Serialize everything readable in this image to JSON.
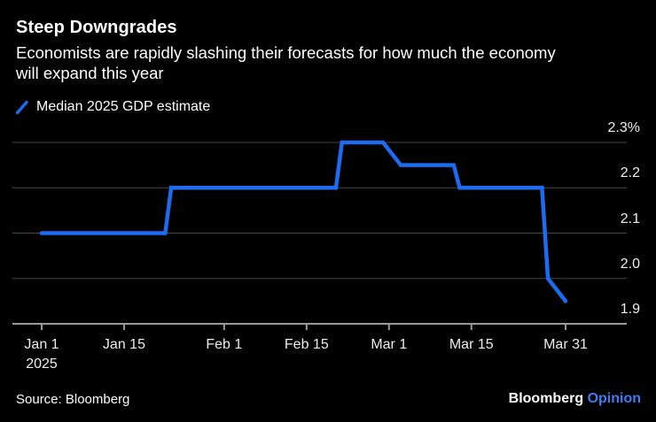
{
  "header": {
    "title": "Steep Downgrades",
    "subtitle_lines": [
      "Economists are rapidly slashing their forecasts for how much the economy",
      "will expand this year"
    ]
  },
  "legend": {
    "label": "Median 2025 GDP estimate",
    "marker": "line-slash-icon"
  },
  "chart_data": {
    "type": "line",
    "title": "Steep Downgrades",
    "subtitle": "Economists are rapidly slashing their forecasts for how much the economy will expand this year",
    "unit": "%",
    "ylim": [
      1.9,
      2.3
    ],
    "grid": "horizontal",
    "legend_position": "top-left",
    "series": [
      {
        "name": "Median 2025 GDP estimate",
        "color": "#1b6cf2",
        "points": [
          {
            "date": "Jan 1",
            "day": 0,
            "value": 2.1
          },
          {
            "date": "Jan 22",
            "day": 21,
            "value": 2.1
          },
          {
            "date": "Jan 23",
            "day": 22,
            "value": 2.2
          },
          {
            "date": "Feb 20",
            "day": 50,
            "value": 2.2
          },
          {
            "date": "Feb 21",
            "day": 51,
            "value": 2.3
          },
          {
            "date": "Feb 28",
            "day": 58,
            "value": 2.3
          },
          {
            "date": "Mar 3",
            "day": 61,
            "value": 2.25
          },
          {
            "date": "Mar 12",
            "day": 70,
            "value": 2.25
          },
          {
            "date": "Mar 13",
            "day": 71,
            "value": 2.2
          },
          {
            "date": "Mar 27",
            "day": 85,
            "value": 2.2
          },
          {
            "date": "Mar 28",
            "day": 86,
            "value": 2.0
          },
          {
            "date": "Mar 31",
            "day": 89,
            "value": 1.95
          }
        ]
      }
    ],
    "y_ticks": [
      {
        "label": "2.3%",
        "value": 2.3
      },
      {
        "label": "2.2",
        "value": 2.2
      },
      {
        "label": "2.1",
        "value": 2.1
      },
      {
        "label": "2.0",
        "value": 2.0
      },
      {
        "label": "1.9",
        "value": 1.9
      }
    ],
    "x_ticks": [
      {
        "label": "Jan 1",
        "sublabel": "2025",
        "day": 0
      },
      {
        "label": "Jan 15",
        "day": 14
      },
      {
        "label": "Feb 1",
        "day": 31
      },
      {
        "label": "Feb 15",
        "day": 45
      },
      {
        "label": "Mar 1",
        "day": 59
      },
      {
        "label": "Mar 15",
        "day": 73
      },
      {
        "label": "Mar 31",
        "day": 89
      }
    ]
  },
  "footer": {
    "source": "Source: Bloomberg",
    "brand": "Bloomberg",
    "brand_suffix": "Opinion"
  },
  "colors": {
    "background": "#000000",
    "text": "#ffffff",
    "axis_label_text": "#ededed",
    "line": "#1b6cf2",
    "grid": "#474747",
    "axis": "#9a9a9a",
    "brand_accent": "#3b7ef5"
  }
}
